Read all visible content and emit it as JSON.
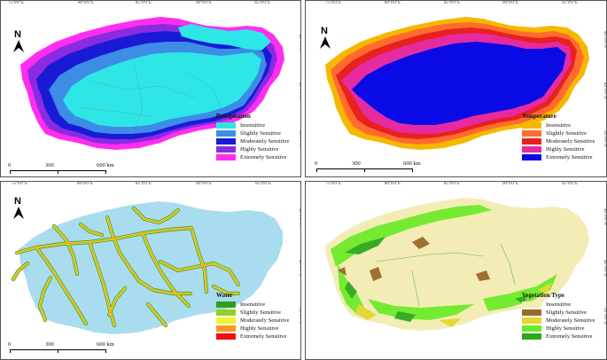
{
  "lon_labels": [
    "75°0'0\"E",
    "80°0'0\"E",
    "85°0'0\"E",
    "90°0'0\"E",
    "95°0'0\"E"
  ],
  "lat_labels": [
    "45°0'0\"N",
    "40°0'0\"N",
    "35°0'0\"N"
  ],
  "north_label": "N",
  "scale": {
    "zero": "0",
    "mid": "300",
    "end": "600 km"
  },
  "legend_labels": [
    "Insensitive",
    "Slightly Sensitive",
    "Moderately Sensitive",
    "Highly Sensitive",
    "Extremely Sensitive"
  ],
  "panels": [
    {
      "title": "Precipitation",
      "colors": [
        "#2ee6e6",
        "#3d8ce6",
        "#1a1ad6",
        "#8a2be2",
        "#ff2df0"
      ]
    },
    {
      "title": "Temperature",
      "colors": [
        "#f5b800",
        "#ff6b2e",
        "#e82020",
        "#e62aa0",
        "#0a0ae6"
      ]
    },
    {
      "title": "Water",
      "colors": [
        "#2e9e22",
        "#8ed12a",
        "#f2f232",
        "#f59a20",
        "#f01010"
      ]
    },
    {
      "title": "Vegetation Type",
      "colors": [
        "#f3ecb4",
        "#9a6a2a",
        "#e6d630",
        "#6eea2a",
        "#2ea81e"
      ]
    }
  ]
}
